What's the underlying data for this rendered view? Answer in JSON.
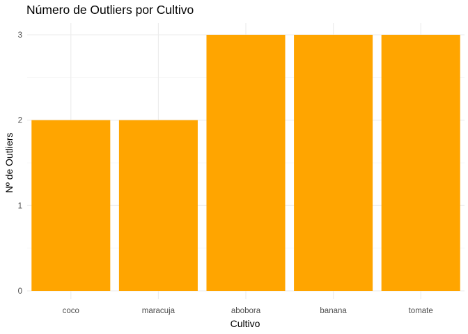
{
  "chart_data": {
    "type": "bar",
    "title": "Número de Outliers por Cultivo",
    "xlabel": "Cultivo",
    "ylabel": "Nº de Outliers",
    "categories": [
      "coco",
      "maracuja",
      "abobora",
      "banana",
      "tomate"
    ],
    "values": [
      2,
      2,
      3,
      3,
      3
    ],
    "ylim": [
      0,
      3
    ],
    "yticks": [
      "0",
      "1",
      "2",
      "3"
    ],
    "bar_color": "#FFA500",
    "grid": true,
    "legend": "none"
  }
}
